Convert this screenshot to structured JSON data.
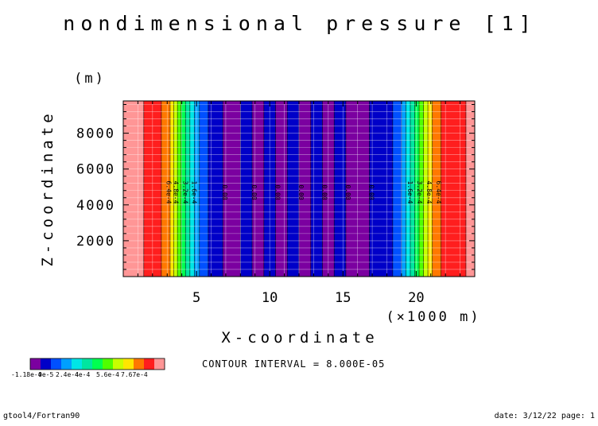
{
  "chart_data": {
    "type": "heatmap",
    "title": "nondimensional pressure [1]",
    "xlabel": "X-coordinate",
    "ylabel": "Z-coordinate",
    "x_unit": "(×1000 m)",
    "y_unit": "(m)",
    "xlim": [
      0,
      24
    ],
    "ylim": [
      0,
      9800
    ],
    "x_ticks": [
      5,
      10,
      15,
      20
    ],
    "y_ticks": [
      2000,
      4000,
      6000,
      8000
    ],
    "x_minor_step": 1,
    "y_minor_step": 400,
    "grid": true,
    "field_varies_along": "x",
    "bands": [
      {
        "x0": 0.0,
        "x1": 1.4,
        "level": 13
      },
      {
        "x0": 1.4,
        "x1": 2.6,
        "level": 12
      },
      {
        "x0": 2.6,
        "x1": 3.2,
        "level": 11
      },
      {
        "x0": 3.2,
        "x1": 3.45,
        "level": 10
      },
      {
        "x0": 3.45,
        "x1": 3.7,
        "level": 9
      },
      {
        "x0": 3.7,
        "x1": 3.95,
        "level": 8
      },
      {
        "x0": 3.95,
        "x1": 4.25,
        "level": 7
      },
      {
        "x0": 4.25,
        "x1": 4.55,
        "level": 6
      },
      {
        "x0": 4.55,
        "x1": 4.85,
        "level": 5
      },
      {
        "x0": 4.85,
        "x1": 5.2,
        "level": 4
      },
      {
        "x0": 5.2,
        "x1": 5.8,
        "level": 3
      },
      {
        "x0": 5.8,
        "x1": 6.8,
        "level": 2
      },
      {
        "x0": 6.8,
        "x1": 8.0,
        "level": 1
      },
      {
        "x0": 8.0,
        "x1": 8.8,
        "level": 2
      },
      {
        "x0": 8.8,
        "x1": 9.6,
        "level": 1
      },
      {
        "x0": 9.6,
        "x1": 10.4,
        "level": 2
      },
      {
        "x0": 10.4,
        "x1": 11.2,
        "level": 1
      },
      {
        "x0": 11.2,
        "x1": 12.0,
        "level": 2
      },
      {
        "x0": 12.0,
        "x1": 12.8,
        "level": 1
      },
      {
        "x0": 12.8,
        "x1": 13.6,
        "level": 2
      },
      {
        "x0": 13.6,
        "x1": 14.4,
        "level": 1
      },
      {
        "x0": 14.4,
        "x1": 15.2,
        "level": 2
      },
      {
        "x0": 15.2,
        "x1": 16.8,
        "level": 1
      },
      {
        "x0": 16.8,
        "x1": 18.4,
        "level": 2
      },
      {
        "x0": 18.4,
        "x1": 19.0,
        "level": 3
      },
      {
        "x0": 19.0,
        "x1": 19.3,
        "level": 4
      },
      {
        "x0": 19.3,
        "x1": 19.6,
        "level": 5
      },
      {
        "x0": 19.6,
        "x1": 19.9,
        "level": 6
      },
      {
        "x0": 19.9,
        "x1": 20.2,
        "level": 7
      },
      {
        "x0": 20.2,
        "x1": 20.5,
        "level": 8
      },
      {
        "x0": 20.5,
        "x1": 20.8,
        "level": 9
      },
      {
        "x0": 20.8,
        "x1": 21.1,
        "level": 10
      },
      {
        "x0": 21.1,
        "x1": 21.7,
        "level": 11
      },
      {
        "x0": 21.7,
        "x1": 23.4,
        "level": 12
      },
      {
        "x0": 23.4,
        "x1": 24.0,
        "level": 13
      }
    ],
    "contour_labels": [
      {
        "x": 2.95,
        "y": 4700,
        "text": "6.4e-4"
      },
      {
        "x": 3.45,
        "y": 4700,
        "text": "4.8e-4"
      },
      {
        "x": 4.1,
        "y": 4700,
        "text": "3.2e-4"
      },
      {
        "x": 4.7,
        "y": 4700,
        "text": "1.6e-4"
      },
      {
        "x": 6.8,
        "y": 4700,
        "text": "0.00"
      },
      {
        "x": 8.8,
        "y": 4700,
        "text": "0.00"
      },
      {
        "x": 10.4,
        "y": 4700,
        "text": "0.00"
      },
      {
        "x": 12.0,
        "y": 4700,
        "text": "0.00"
      },
      {
        "x": 13.6,
        "y": 4700,
        "text": "0.00"
      },
      {
        "x": 15.2,
        "y": 4700,
        "text": "0.00"
      },
      {
        "x": 16.8,
        "y": 4700,
        "text": "0.00"
      },
      {
        "x": 19.45,
        "y": 4700,
        "text": "1.6e-4"
      },
      {
        "x": 20.1,
        "y": 4700,
        "text": "3.2e-4"
      },
      {
        "x": 20.75,
        "y": 4700,
        "text": "4.8e-4"
      },
      {
        "x": 21.4,
        "y": 4700,
        "text": "6.4e-4"
      }
    ],
    "colorbar": {
      "colors": [
        "#7b00a0",
        "#0000c8",
        "#0050ff",
        "#00a0ff",
        "#00e6e6",
        "#00e6a0",
        "#00ff50",
        "#50ff00",
        "#c8ff00",
        "#ffe600",
        "#ff7800",
        "#ff1e1e",
        "#ff9696"
      ],
      "labels": [
        "-1.18e-4",
        "0e-5",
        "2.4e-4",
        "4e-4",
        "5.6e-4",
        "7.67e-4"
      ]
    },
    "contour_interval_text": "CONTOUR INTERVAL = 8.000E-05"
  },
  "footer": {
    "left": "gtool4/Fortran90",
    "right": "date: 3/12/22 page: 1"
  }
}
